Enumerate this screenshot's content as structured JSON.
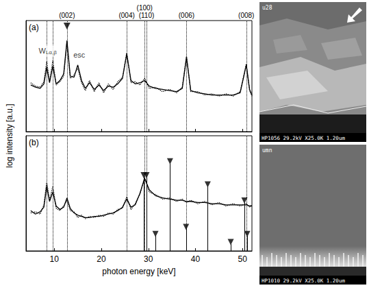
{
  "chart_data": [
    {
      "type": "line",
      "panel": "(a)",
      "xlim": [
        4,
        52
      ],
      "xticks": [
        10,
        20,
        30,
        40,
        50
      ],
      "ylim": [
        0,
        10
      ],
      "yticks": [],
      "tick_labels": false,
      "grid": false,
      "x": [
        5,
        6,
        7,
        7.8,
        8.4,
        9.0,
        9.7,
        10.4,
        11.2,
        12.0,
        12.7,
        13.4,
        14.2,
        15.0,
        15.8,
        16.6,
        17.5,
        18.5,
        19.5,
        20.5,
        21.5,
        22.5,
        23.5,
        24.5,
        25.4,
        26.3,
        27.2,
        28.2,
        29.2,
        30.2,
        31.5,
        33,
        34.5,
        36,
        37.2,
        38.1,
        39,
        40.5,
        42,
        43.5,
        45,
        46.5,
        48,
        49.5,
        50.8,
        51.5,
        52
      ],
      "series": [
        {
          "color": "#000000",
          "line_style": "dotted",
          "values": [
            4.4,
            4.1,
            4.0,
            4.5,
            6.3,
            4.5,
            6.4,
            4.2,
            4.5,
            5.0,
            8.0,
            4.8,
            5.1,
            5.7,
            4.4,
            3.7,
            4.6,
            3.6,
            4.4,
            3.5,
            4.3,
            3.8,
            4.5,
            4.9,
            7.1,
            4.4,
            4.5,
            4.2,
            4.8,
            3.9,
            4.0,
            3.6,
            3.8,
            3.5,
            4.0,
            6.8,
            3.6,
            3.6,
            3.3,
            3.4,
            3.2,
            3.4,
            3.2,
            3.6,
            6.1,
            3.7,
            3.2
          ]
        },
        {
          "color": "#000000",
          "line_style": "solid",
          "values": [
            4.2,
            4.0,
            3.9,
            4.3,
            5.8,
            4.4,
            5.9,
            4.3,
            4.6,
            5.2,
            8.2,
            5.0,
            4.9,
            6.0,
            4.6,
            3.9,
            4.4,
            3.8,
            4.2,
            3.7,
            4.1,
            4.0,
            4.3,
            4.8,
            7.0,
            4.6,
            4.3,
            4.4,
            4.6,
            4.1,
            3.9,
            3.8,
            3.7,
            3.6,
            3.9,
            6.7,
            3.7,
            3.5,
            3.4,
            3.3,
            3.3,
            3.3,
            3.3,
            3.5,
            6.0,
            3.8,
            3.3
          ]
        },
        {
          "type": "scatter",
          "marker": "triangle-down",
          "color": "#000000",
          "x": [
            12.7
          ],
          "values": [
            9.5
          ]
        }
      ],
      "reference_lines": [
        {
          "x": 8.4
        },
        {
          "x": 9.7
        },
        {
          "x": 12.7,
          "label": "(002)"
        },
        {
          "x": 25.4,
          "label": "(004)"
        },
        {
          "x": 29.2,
          "label": "(100)"
        },
        {
          "x": 29.6,
          "label": "(110)"
        },
        {
          "x": 38.1,
          "label": "(006)"
        },
        {
          "x": 50.8,
          "label": "(008)"
        }
      ],
      "annotations": [
        {
          "text": "W",
          "subscript": "Lα,β",
          "x": 8.6,
          "y": 7.3
        },
        {
          "text": "esc",
          "x": 15.3,
          "y": 6.9
        }
      ]
    },
    {
      "type": "line",
      "panel": "(b)",
      "xlabel": "photon energy [keV]",
      "xlim": [
        4,
        52
      ],
      "xticks": [
        10,
        20,
        30,
        40,
        50
      ],
      "ylim": [
        0,
        10
      ],
      "yticks": [],
      "tick_labels": "x",
      "grid": false,
      "x": [
        5,
        6,
        7,
        7.8,
        8.4,
        9.0,
        9.7,
        10.4,
        11.2,
        12.0,
        12.7,
        13.4,
        14.2,
        15.0,
        15.8,
        16.6,
        17.5,
        18.5,
        19.5,
        20.5,
        21.5,
        22.5,
        23.5,
        24.5,
        25.4,
        26.3,
        27.2,
        28.2,
        29.2,
        30.2,
        31.5,
        33,
        34.5,
        36,
        37.2,
        38.1,
        39,
        40.5,
        42,
        43.5,
        45,
        46.5,
        48,
        49.5,
        50.8,
        51.5,
        52
      ],
      "series": [
        {
          "color": "#000000",
          "line_style": "dotted",
          "values": [
            3.3,
            3.4,
            3.2,
            4.0,
            6.0,
            4.4,
            5.6,
            3.7,
            3.5,
            3.9,
            4.4,
            3.5,
            3.4,
            2.9,
            3.1,
            2.8,
            3.0,
            2.9,
            3.1,
            3.0,
            3.3,
            3.2,
            3.6,
            3.7,
            4.7,
            3.6,
            4.1,
            4.9,
            6.4,
            5.1,
            4.9,
            4.5,
            4.6,
            4.3,
            4.5,
            4.2,
            4.4,
            4.1,
            4.3,
            4.0,
            4.2,
            3.9,
            4.1,
            3.9,
            4.1,
            3.8,
            4.0
          ]
        },
        {
          "color": "#000000",
          "line_style": "solid",
          "values": [
            3.5,
            3.2,
            3.4,
            3.8,
            5.6,
            4.3,
            5.1,
            3.9,
            3.6,
            3.8,
            4.6,
            3.7,
            3.3,
            3.1,
            3.0,
            2.9,
            2.9,
            3.0,
            3.0,
            3.1,
            3.2,
            3.3,
            3.5,
            3.8,
            4.5,
            3.8,
            4.0,
            5.0,
            6.3,
            5.3,
            4.8,
            4.6,
            4.5,
            4.4,
            4.4,
            4.3,
            4.3,
            4.2,
            4.2,
            4.1,
            4.1,
            4.0,
            4.0,
            4.0,
            4.0,
            3.9,
            3.9
          ]
        },
        {
          "type": "stick",
          "marker": "triangle-down",
          "color": "#000000",
          "x": [
            29.0,
            29.6,
            31.5,
            34.6,
            38.0,
            42.6,
            47.5,
            50.4,
            51.0
          ],
          "values": [
            6.4,
            6.4,
            1.3,
            7.6,
            1.9,
            5.6,
            0.6,
            4.2,
            1.3
          ]
        }
      ],
      "reference_lines": [
        {
          "x": 8.4
        },
        {
          "x": 9.7
        },
        {
          "x": 12.7
        },
        {
          "x": 25.4
        },
        {
          "x": 29.2
        },
        {
          "x": 29.6
        },
        {
          "x": 38.1
        },
        {
          "x": 50.8
        }
      ]
    }
  ],
  "ylabel": "log intensity [a.u.]",
  "micrographs": [
    {
      "label": "u28",
      "caption": "HP1056 29.2kV X25.0K 1.20um"
    },
    {
      "label": "umn",
      "caption": "HP1010 29.2kV X25.0K 1.20um"
    }
  ]
}
